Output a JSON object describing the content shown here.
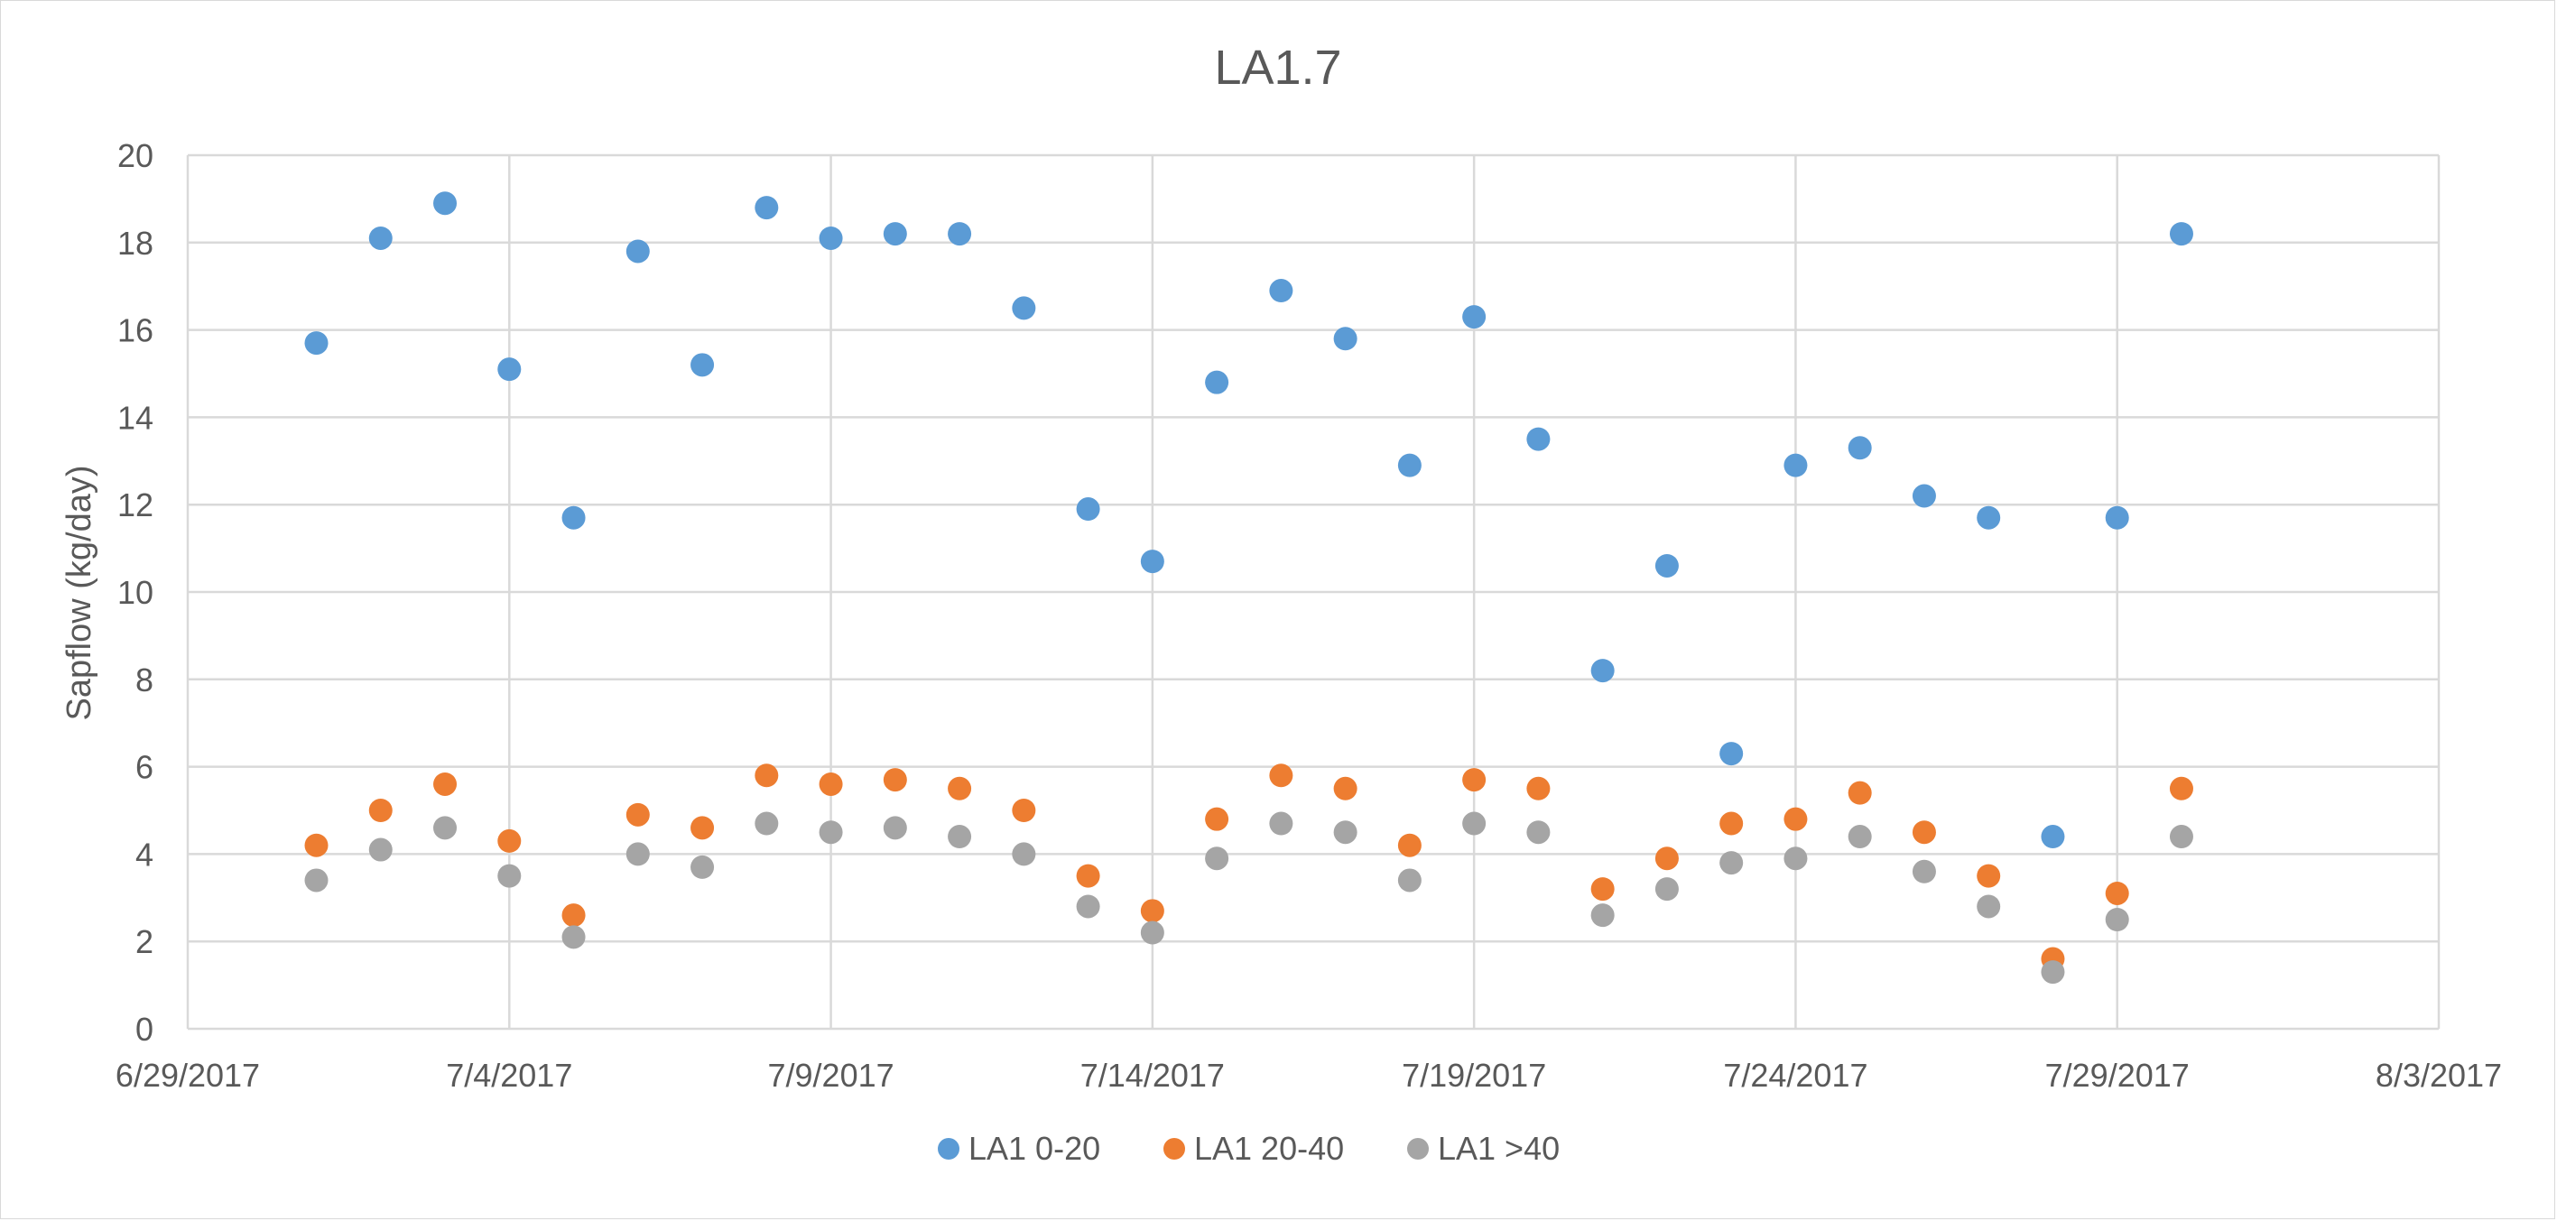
{
  "chart_data": {
    "type": "scatter",
    "title": "LA1.7",
    "xlabel": "",
    "ylabel": "Sapflow (kg/day)",
    "xlim": [
      "2017-06-29",
      "2017-08-03"
    ],
    "ylim": [
      0,
      20
    ],
    "x_tick_labels": [
      "6/29/2017",
      "7/4/2017",
      "7/9/2017",
      "7/14/2017",
      "7/19/2017",
      "7/24/2017",
      "7/29/2017",
      "8/3/2017"
    ],
    "y_tick_labels": [
      "0",
      "2",
      "4",
      "6",
      "8",
      "10",
      "12",
      "14",
      "16",
      "18",
      "20"
    ],
    "grid": true,
    "legend_position": "bottom",
    "colors": {
      "LA1 0-20": "#5b9bd5",
      "LA1 20-40": "#ed7d31",
      "LA1 >40": "#a5a5a5",
      "grid": "#d9d9d9",
      "text": "#595959"
    },
    "series": [
      {
        "name": "LA1 0-20",
        "color": "#5b9bd5",
        "points": [
          [
            "2017-07-01",
            15.7
          ],
          [
            "2017-07-02",
            18.1
          ],
          [
            "2017-07-03",
            18.9
          ],
          [
            "2017-07-04",
            15.1
          ],
          [
            "2017-07-05",
            11.7
          ],
          [
            "2017-07-06",
            17.8
          ],
          [
            "2017-07-07",
            15.2
          ],
          [
            "2017-07-08",
            18.8
          ],
          [
            "2017-07-09",
            18.1
          ],
          [
            "2017-07-10",
            18.2
          ],
          [
            "2017-07-11",
            18.2
          ],
          [
            "2017-07-12",
            16.5
          ],
          [
            "2017-07-13",
            11.9
          ],
          [
            "2017-07-14",
            10.7
          ],
          [
            "2017-07-15",
            14.8
          ],
          [
            "2017-07-16",
            16.9
          ],
          [
            "2017-07-17",
            15.8
          ],
          [
            "2017-07-18",
            12.9
          ],
          [
            "2017-07-19",
            16.3
          ],
          [
            "2017-07-20",
            13.5
          ],
          [
            "2017-07-21",
            8.2
          ],
          [
            "2017-07-22",
            10.6
          ],
          [
            "2017-07-23",
            6.3
          ],
          [
            "2017-07-24",
            12.9
          ],
          [
            "2017-07-25",
            13.3
          ],
          [
            "2017-07-26",
            12.2
          ],
          [
            "2017-07-27",
            11.7
          ],
          [
            "2017-07-28",
            4.4
          ],
          [
            "2017-07-29",
            11.7
          ],
          [
            "2017-07-30",
            18.2
          ]
        ]
      },
      {
        "name": "LA1 20-40",
        "color": "#ed7d31",
        "points": [
          [
            "2017-07-01",
            4.2
          ],
          [
            "2017-07-02",
            5.0
          ],
          [
            "2017-07-03",
            5.6
          ],
          [
            "2017-07-04",
            4.3
          ],
          [
            "2017-07-05",
            2.6
          ],
          [
            "2017-07-06",
            4.9
          ],
          [
            "2017-07-07",
            4.6
          ],
          [
            "2017-07-08",
            5.8
          ],
          [
            "2017-07-09",
            5.6
          ],
          [
            "2017-07-10",
            5.7
          ],
          [
            "2017-07-11",
            5.5
          ],
          [
            "2017-07-12",
            5.0
          ],
          [
            "2017-07-13",
            3.5
          ],
          [
            "2017-07-14",
            2.7
          ],
          [
            "2017-07-15",
            4.8
          ],
          [
            "2017-07-16",
            5.8
          ],
          [
            "2017-07-17",
            5.5
          ],
          [
            "2017-07-18",
            4.2
          ],
          [
            "2017-07-19",
            5.7
          ],
          [
            "2017-07-20",
            5.5
          ],
          [
            "2017-07-21",
            3.2
          ],
          [
            "2017-07-22",
            3.9
          ],
          [
            "2017-07-23",
            4.7
          ],
          [
            "2017-07-24",
            4.8
          ],
          [
            "2017-07-25",
            5.4
          ],
          [
            "2017-07-26",
            4.5
          ],
          [
            "2017-07-27",
            3.5
          ],
          [
            "2017-07-28",
            1.6
          ],
          [
            "2017-07-29",
            3.1
          ],
          [
            "2017-07-30",
            5.5
          ]
        ]
      },
      {
        "name": "LA1 >40",
        "color": "#a5a5a5",
        "points": [
          [
            "2017-07-01",
            3.4
          ],
          [
            "2017-07-02",
            4.1
          ],
          [
            "2017-07-03",
            4.6
          ],
          [
            "2017-07-04",
            3.5
          ],
          [
            "2017-07-05",
            2.1
          ],
          [
            "2017-07-06",
            4.0
          ],
          [
            "2017-07-07",
            3.7
          ],
          [
            "2017-07-08",
            4.7
          ],
          [
            "2017-07-09",
            4.5
          ],
          [
            "2017-07-10",
            4.6
          ],
          [
            "2017-07-11",
            4.4
          ],
          [
            "2017-07-12",
            4.0
          ],
          [
            "2017-07-13",
            2.8
          ],
          [
            "2017-07-14",
            2.2
          ],
          [
            "2017-07-15",
            3.9
          ],
          [
            "2017-07-16",
            4.7
          ],
          [
            "2017-07-17",
            4.5
          ],
          [
            "2017-07-18",
            3.4
          ],
          [
            "2017-07-19",
            4.7
          ],
          [
            "2017-07-20",
            4.5
          ],
          [
            "2017-07-21",
            2.6
          ],
          [
            "2017-07-22",
            3.2
          ],
          [
            "2017-07-23",
            3.8
          ],
          [
            "2017-07-24",
            3.9
          ],
          [
            "2017-07-25",
            4.4
          ],
          [
            "2017-07-26",
            3.6
          ],
          [
            "2017-07-27",
            2.8
          ],
          [
            "2017-07-28",
            1.3
          ],
          [
            "2017-07-29",
            2.5
          ],
          [
            "2017-07-30",
            4.4
          ]
        ]
      }
    ]
  }
}
